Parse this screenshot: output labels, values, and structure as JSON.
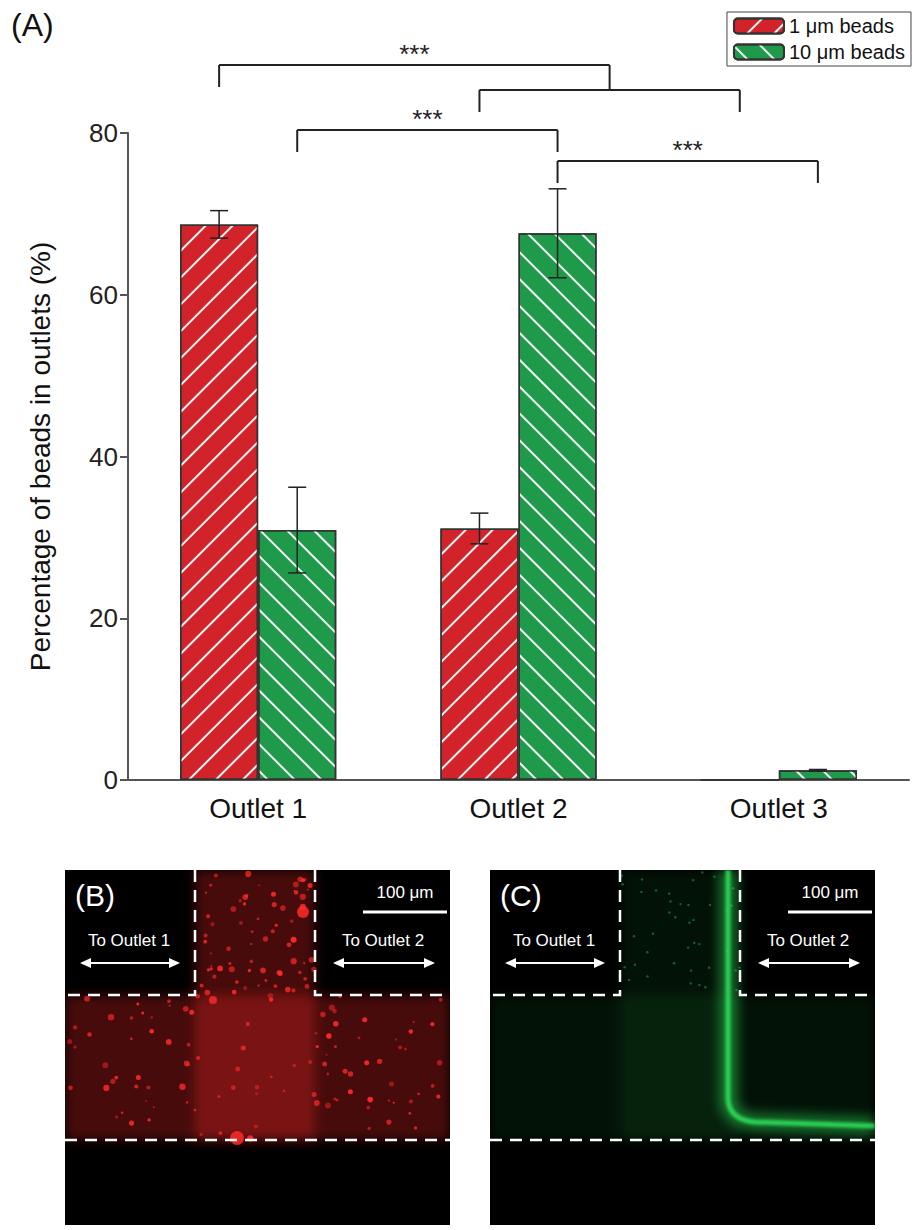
{
  "chart_data": {
    "type": "bar",
    "panel_label": "(A)",
    "y_label": "Percentage of beads in outlets (%)",
    "categories": [
      "Outlet 1",
      "Outlet 2",
      "Outlet 3"
    ],
    "series": [
      {
        "name": "1 μm beads",
        "color": "#d2232a",
        "values": [
          68.7,
          31.1,
          0
        ],
        "errors": [
          1.7,
          1.9,
          0
        ]
      },
      {
        "name": "10 μm beads",
        "color": "#1f9a4b",
        "values": [
          30.9,
          67.6,
          1.2
        ],
        "errors": [
          5.3,
          5.5,
          0.1
        ]
      }
    ],
    "ylim": [
      0,
      80
    ],
    "yticks": [
      0,
      20,
      40,
      60,
      80
    ],
    "grid": false,
    "legend": "top-right",
    "comparisons": [
      {
        "label": "***",
        "a": [
          [
            "Outlet 1",
            "1 μm beads"
          ]
        ],
        "b": [
          [
            "Outlet 2",
            "1 μm beads"
          ],
          [
            "Outlet 3",
            "1 μm beads"
          ]
        ]
      },
      {
        "label": "***",
        "a": [
          [
            "Outlet 1",
            "10 μm beads"
          ]
        ],
        "b": [
          [
            "Outlet 2",
            "10 μm beads"
          ]
        ]
      },
      {
        "label": "***",
        "a": [
          [
            "Outlet 2",
            "10 μm beads"
          ]
        ],
        "b": [
          [
            "Outlet 3",
            "10 μm beads"
          ]
        ]
      }
    ]
  },
  "micrographs": [
    {
      "label": "(B)",
      "scale_bar": "100 μm",
      "left_arrow": "To Outlet 1",
      "right_arrow": "To Outlet 2",
      "color": "#ff2a2a"
    },
    {
      "label": "(C)",
      "scale_bar": "100 μm",
      "left_arrow": "To Outlet 1",
      "right_arrow": "To Outlet 2",
      "color": "#2ee05a"
    }
  ]
}
